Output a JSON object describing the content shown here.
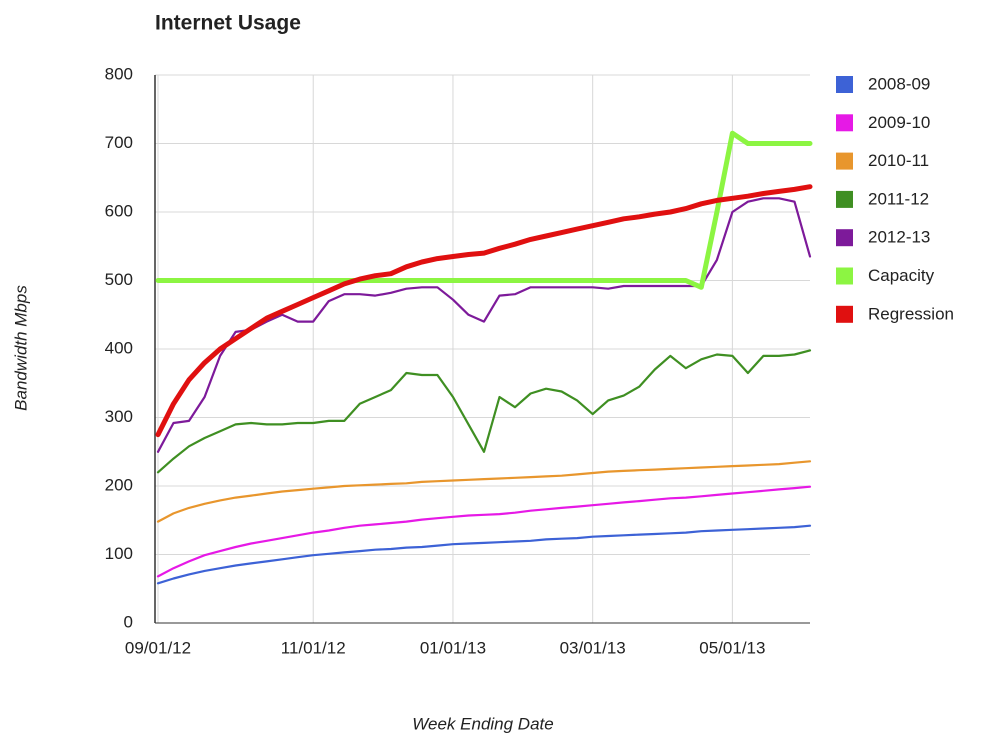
{
  "chart_data": {
    "type": "line",
    "title": "Internet Usage",
    "x_label": "Week Ending Date",
    "y_label": "Bandwidth Mbps",
    "categories": [
      "09/01/12",
      null,
      null,
      null,
      null,
      null,
      null,
      null,
      null,
      null,
      "11/01/12",
      null,
      null,
      null,
      null,
      null,
      null,
      null,
      null,
      "01/01/13",
      null,
      null,
      null,
      null,
      null,
      null,
      null,
      null,
      "03/01/13",
      null,
      null,
      null,
      null,
      null,
      null,
      null,
      null,
      "05/01/13",
      null,
      null,
      null,
      null,
      null
    ],
    "ylim": [
      0,
      800
    ],
    "yticks": [
      0,
      100,
      200,
      300,
      400,
      500,
      600,
      700,
      800
    ],
    "grid": true,
    "legend": "right",
    "series": [
      {
        "name": "2008-09",
        "color": "#3d62d6",
        "values": [
          58,
          65,
          71,
          76,
          80,
          84,
          87,
          90,
          93,
          96,
          99,
          101,
          103,
          105,
          107,
          108,
          110,
          111,
          113,
          115,
          116,
          117,
          118,
          119,
          120,
          122,
          123,
          124,
          126,
          127,
          128,
          129,
          130,
          131,
          132,
          134,
          135,
          136,
          137,
          138,
          139,
          140,
          142
        ]
      },
      {
        "name": "2009-10",
        "color": "#e619e6",
        "values": [
          68,
          80,
          90,
          99,
          105,
          111,
          116,
          120,
          124,
          128,
          132,
          135,
          139,
          142,
          144,
          146,
          148,
          151,
          153,
          155,
          157,
          158,
          159,
          161,
          164,
          166,
          168,
          170,
          172,
          174,
          176,
          178,
          180,
          182,
          183,
          185,
          187,
          189,
          191,
          193,
          195,
          197,
          199
        ]
      },
      {
        "name": "2010-11",
        "color": "#e8962d",
        "values": [
          148,
          160,
          168,
          174,
          179,
          183,
          186,
          189,
          192,
          194,
          196,
          198,
          200,
          201,
          202,
          203,
          204,
          206,
          207,
          208,
          209,
          210,
          211,
          212,
          213,
          214,
          215,
          217,
          219,
          221,
          222,
          223,
          224,
          225,
          226,
          227,
          228,
          229,
          230,
          231,
          232,
          234,
          236
        ]
      },
      {
        "name": "2011-12",
        "color": "#3f8f22",
        "values": [
          220,
          240,
          258,
          270,
          280,
          290,
          292,
          290,
          290,
          292,
          292,
          295,
          295,
          320,
          330,
          340,
          365,
          362,
          362,
          330,
          290,
          250,
          330,
          315,
          335,
          342,
          338,
          325,
          305,
          325,
          332,
          345,
          370,
          390,
          372,
          385,
          392,
          390,
          365,
          390,
          390,
          392,
          398
        ]
      },
      {
        "name": "2012-13",
        "color": "#7d1a9a",
        "values": [
          250,
          292,
          295,
          330,
          390,
          425,
          428,
          440,
          450,
          440,
          440,
          470,
          480,
          480,
          478,
          482,
          488,
          490,
          490,
          472,
          450,
          440,
          478,
          480,
          490,
          490,
          490,
          490,
          490,
          488,
          492,
          492,
          492,
          492,
          492,
          492,
          530,
          600,
          615,
          620,
          620,
          615,
          535
        ]
      },
      {
        "name": "Capacity",
        "color": "#8cf542",
        "values": [
          500,
          500,
          500,
          500,
          500,
          500,
          500,
          500,
          500,
          500,
          500,
          500,
          500,
          500,
          500,
          500,
          500,
          500,
          500,
          500,
          500,
          500,
          500,
          500,
          500,
          500,
          500,
          500,
          500,
          500,
          500,
          500,
          500,
          500,
          500,
          490,
          600,
          715,
          700,
          700,
          700,
          700,
          700
        ]
      },
      {
        "name": "Regression",
        "color": "#e01010",
        "values": [
          275,
          320,
          355,
          380,
          400,
          415,
          430,
          445,
          455,
          465,
          475,
          485,
          495,
          502,
          507,
          510,
          520,
          527,
          532,
          535,
          538,
          540,
          547,
          553,
          560,
          565,
          570,
          575,
          580,
          585,
          590,
          593,
          597,
          600,
          605,
          612,
          617,
          620,
          623,
          627,
          630,
          633,
          637
        ]
      }
    ]
  }
}
